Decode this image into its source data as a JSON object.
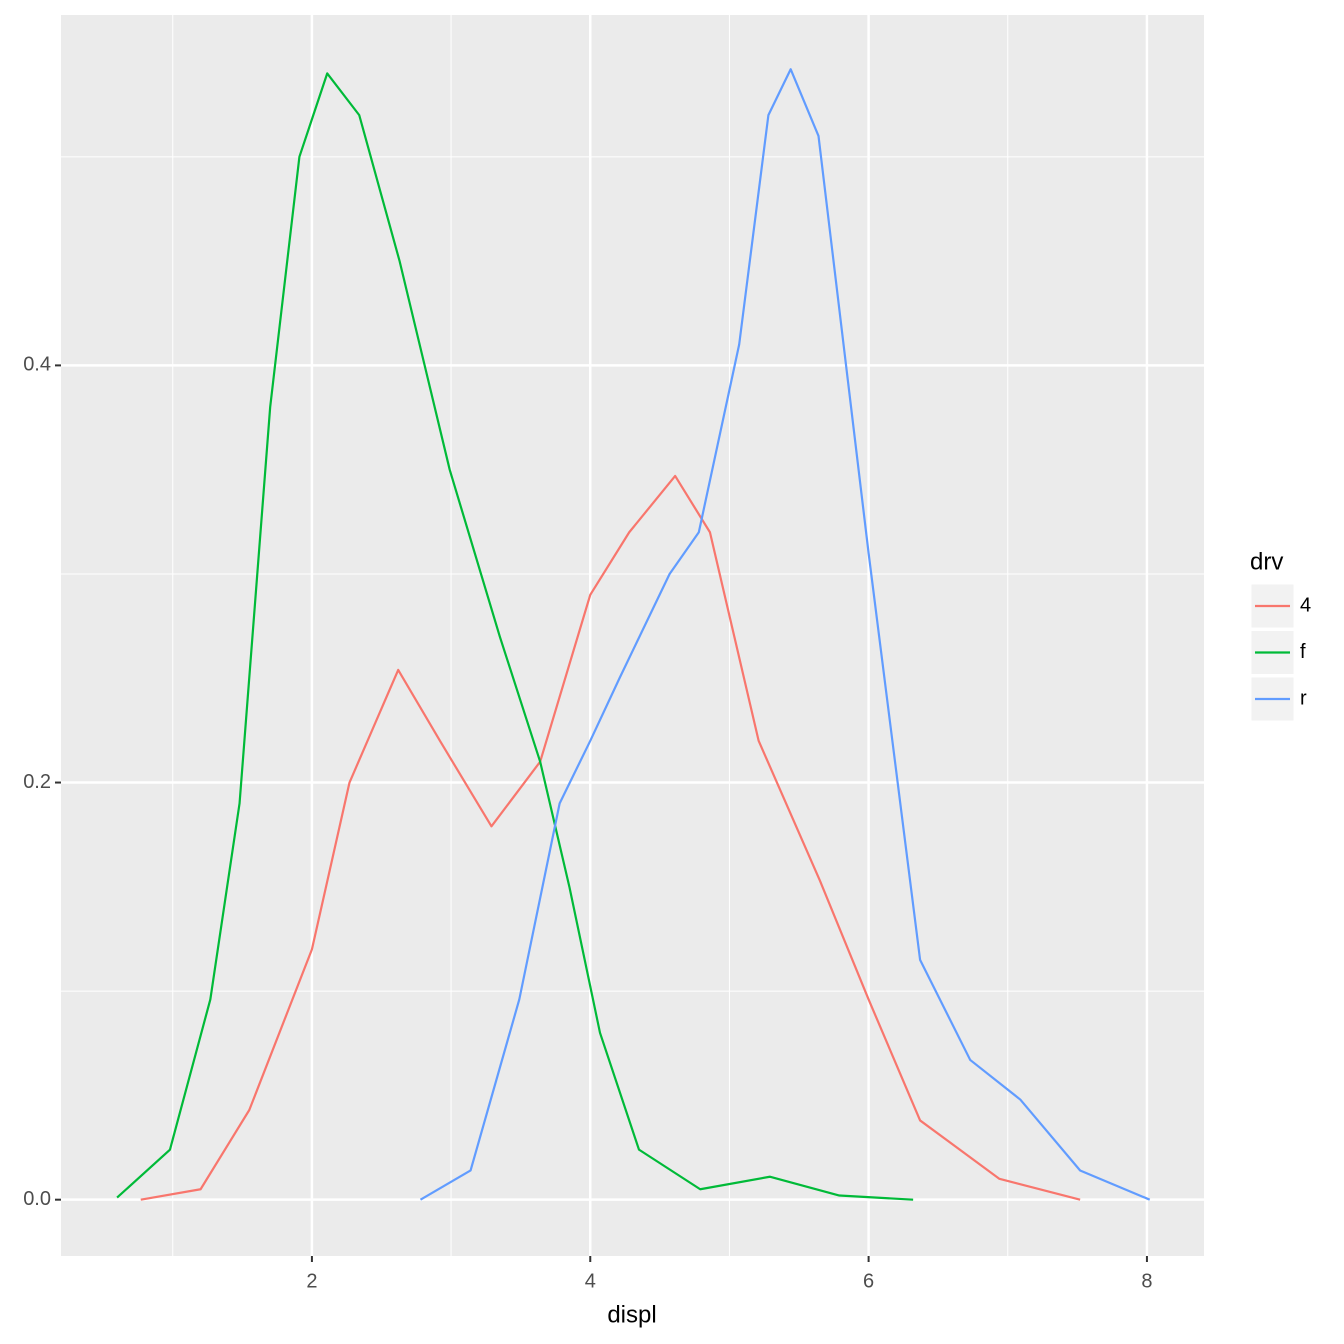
{
  "chart_data": {
    "type": "line",
    "x_label": "displ",
    "legend_title": "drv",
    "legend_position": "right",
    "grid": true,
    "xlim": [
      0.197,
      8.41
    ],
    "ylim": [
      -0.027,
      0.568
    ],
    "xticks": [
      2,
      4,
      6,
      8
    ],
    "yticks": [
      {
        "value": 0,
        "label": "0.0"
      },
      0.2,
      0.4
    ],
    "x_minor_grid": [
      1,
      3,
      5,
      7
    ],
    "y_minor_grid": [
      0.1,
      0.3,
      0.5
    ],
    "series": [
      {
        "name": "4",
        "color": "#F8766D",
        "x": [
          0.77,
          1.2,
          1.55,
          2.0,
          2.27,
          2.62,
          2.92,
          3.29,
          3.64,
          4.0,
          4.28,
          4.61,
          4.86,
          5.21,
          5.65,
          6.0,
          6.37,
          6.94,
          7.52
        ],
        "values": [
          0.0,
          0.005,
          0.043,
          0.12,
          0.2,
          0.254,
          0.22,
          0.179,
          0.21,
          0.29,
          0.32,
          0.347,
          0.32,
          0.22,
          0.153,
          0.096,
          0.038,
          0.01,
          0.0
        ]
      },
      {
        "name": "f",
        "color": "#00BA38",
        "x": [
          0.6,
          0.98,
          1.27,
          1.48,
          1.7,
          1.91,
          2.11,
          2.34,
          2.63,
          2.99,
          3.35,
          3.64,
          3.85,
          4.07,
          4.35,
          4.79,
          5.29,
          5.79,
          6.32
        ],
        "values": [
          0.001,
          0.024,
          0.096,
          0.19,
          0.38,
          0.5,
          0.54,
          0.52,
          0.45,
          0.35,
          0.27,
          0.21,
          0.15,
          0.08,
          0.024,
          0.005,
          0.011,
          0.002,
          0.0
        ]
      },
      {
        "name": "r",
        "color": "#619CFF",
        "x": [
          2.78,
          3.14,
          3.49,
          3.78,
          4.0,
          4.21,
          4.57,
          4.78,
          5.07,
          5.28,
          5.44,
          5.64,
          6.0,
          6.37,
          6.73,
          7.09,
          7.52,
          8.02
        ],
        "values": [
          0.0,
          0.014,
          0.096,
          0.19,
          0.22,
          0.25,
          0.3,
          0.32,
          0.41,
          0.52,
          0.542,
          0.51,
          0.31,
          0.115,
          0.067,
          0.048,
          0.014,
          0.0
        ]
      }
    ]
  }
}
